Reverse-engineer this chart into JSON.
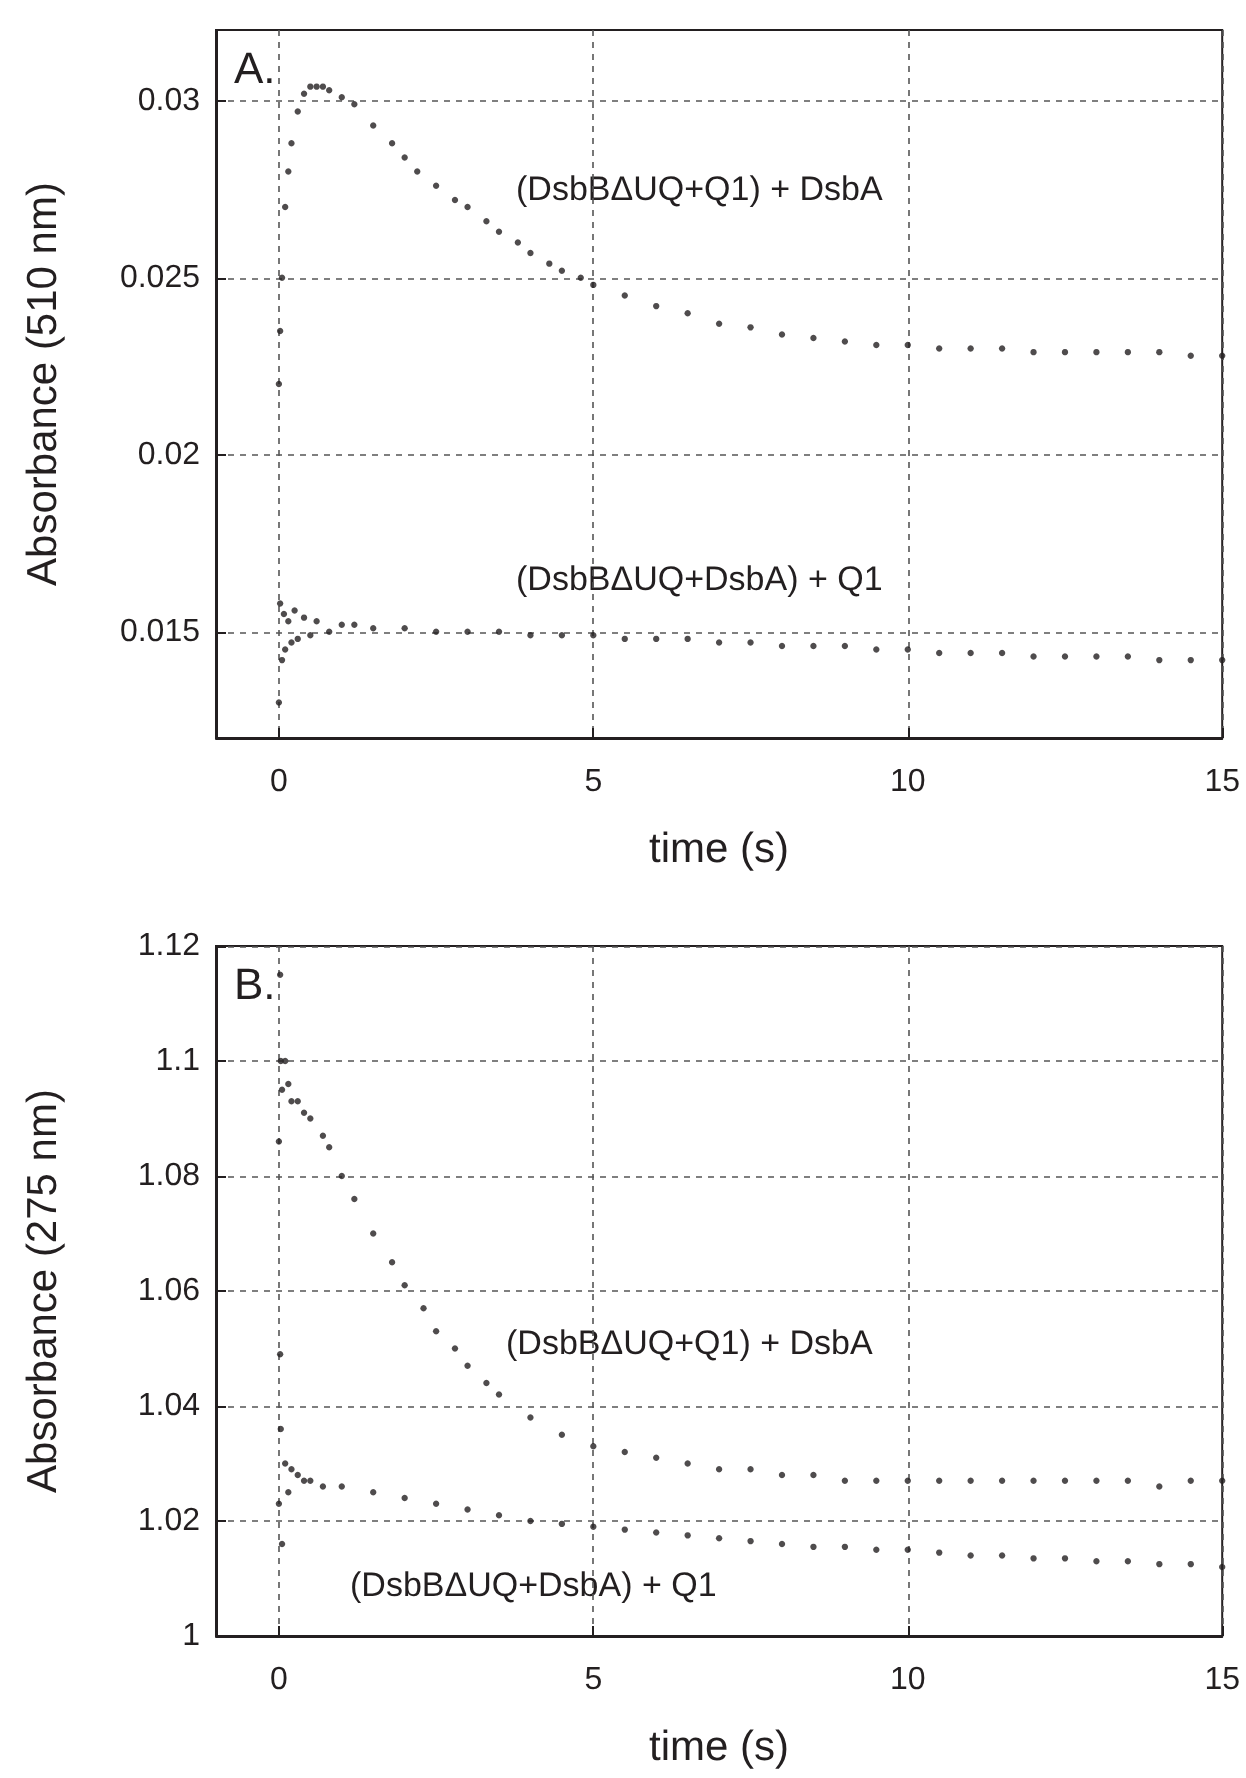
{
  "chart_data": [
    {
      "type": "scatter",
      "title": "A.",
      "xlabel": "time (s)",
      "ylabel": "Absorbance (510 nm)",
      "xlim": [
        -1,
        15
      ],
      "xticks": [
        0,
        5,
        10,
        15
      ],
      "ylim": [
        0.012,
        0.032
      ],
      "yticks": [
        0.015,
        0.02,
        0.025,
        0.03
      ],
      "grid": true,
      "marker": "circle",
      "series": [
        {
          "name": "(DsbBΔUQ+Q1) + DsbA",
          "color": "#231f20",
          "x": [
            0,
            0.02,
            0.05,
            0.1,
            0.15,
            0.2,
            0.3,
            0.4,
            0.5,
            0.6,
            0.7,
            0.8,
            1.0,
            1.2,
            1.5,
            1.8,
            2.0,
            2.2,
            2.5,
            2.8,
            3,
            3.3,
            3.5,
            3.8,
            4,
            4.3,
            4.5,
            4.8,
            5,
            5.5,
            6,
            6.5,
            7,
            7.5,
            8,
            8.5,
            9,
            9.5,
            10,
            10.5,
            11,
            11.5,
            12,
            12.5,
            13,
            13.5,
            14,
            14.5,
            15
          ],
          "values": [
            0.022,
            0.0235,
            0.025,
            0.027,
            0.028,
            0.0288,
            0.0297,
            0.0302,
            0.0304,
            0.0304,
            0.0304,
            0.0303,
            0.0301,
            0.0299,
            0.0293,
            0.0288,
            0.0284,
            0.028,
            0.0276,
            0.0272,
            0.027,
            0.0266,
            0.0263,
            0.026,
            0.0257,
            0.0254,
            0.0252,
            0.025,
            0.0248,
            0.0245,
            0.0242,
            0.024,
            0.0237,
            0.0236,
            0.0234,
            0.0233,
            0.0232,
            0.0231,
            0.0231,
            0.023,
            0.023,
            0.023,
            0.0229,
            0.0229,
            0.0229,
            0.0229,
            0.0229,
            0.0228,
            0.0228
          ]
        },
        {
          "name": "(DsbBΔUQ+DsbA) + Q1",
          "color": "#231f20",
          "x": [
            0,
            0.02,
            0.05,
            0.08,
            0.1,
            0.15,
            0.2,
            0.25,
            0.3,
            0.4,
            0.5,
            0.6,
            0.8,
            1,
            1.2,
            1.5,
            2,
            2.5,
            3,
            3.5,
            4,
            4.5,
            5,
            5.5,
            6,
            6.5,
            7,
            7.5,
            8,
            8.5,
            9,
            9.5,
            10,
            10.5,
            11,
            11.5,
            12,
            12.5,
            13,
            13.5,
            14,
            14.5,
            15
          ],
          "values": [
            0.013,
            0.0158,
            0.0142,
            0.0155,
            0.0145,
            0.0153,
            0.0147,
            0.0156,
            0.0148,
            0.0154,
            0.0149,
            0.0153,
            0.015,
            0.0152,
            0.0152,
            0.0151,
            0.0151,
            0.015,
            0.015,
            0.015,
            0.0149,
            0.0149,
            0.0149,
            0.0148,
            0.0148,
            0.0148,
            0.0147,
            0.0147,
            0.0146,
            0.0146,
            0.0146,
            0.0145,
            0.0145,
            0.0144,
            0.0144,
            0.0144,
            0.0143,
            0.0143,
            0.0143,
            0.0143,
            0.0142,
            0.0142,
            0.0142
          ]
        }
      ]
    },
    {
      "type": "scatter",
      "title": "B.",
      "xlabel": "time (s)",
      "ylabel": "Absorbance (275 nm)",
      "xlim": [
        -1,
        15
      ],
      "xticks": [
        0,
        5,
        10,
        15
      ],
      "ylim": [
        1,
        1.12
      ],
      "yticks": [
        1,
        1.02,
        1.04,
        1.06,
        1.08,
        1.1,
        1.12
      ],
      "grid": true,
      "marker": "circle",
      "series": [
        {
          "name": "(DsbBΔUQ+Q1) + DsbA",
          "color": "#231f20",
          "x": [
            0,
            0.02,
            0.03,
            0.05,
            0.1,
            0.15,
            0.2,
            0.3,
            0.4,
            0.5,
            0.7,
            0.8,
            1,
            1.2,
            1.5,
            1.8,
            2,
            2.3,
            2.5,
            2.8,
            3,
            3.3,
            3.5,
            4,
            4.5,
            5,
            5.5,
            6,
            6.5,
            7,
            7.5,
            8,
            8.5,
            9,
            9.5,
            10,
            10.5,
            11,
            11.5,
            12,
            12.5,
            13,
            13.5,
            14,
            14.5,
            15
          ],
          "values": [
            1.086,
            1.115,
            1.1,
            1.095,
            1.1,
            1.096,
            1.093,
            1.093,
            1.091,
            1.09,
            1.087,
            1.085,
            1.08,
            1.076,
            1.07,
            1.065,
            1.061,
            1.057,
            1.053,
            1.05,
            1.047,
            1.044,
            1.042,
            1.038,
            1.035,
            1.033,
            1.032,
            1.031,
            1.03,
            1.029,
            1.029,
            1.028,
            1.028,
            1.027,
            1.027,
            1.027,
            1.027,
            1.027,
            1.027,
            1.027,
            1.027,
            1.027,
            1.027,
            1.026,
            1.027,
            1.027
          ]
        },
        {
          "name": "(DsbBΔUQ+DsbA) + Q1",
          "color": "#231f20",
          "x": [
            0,
            0.02,
            0.03,
            0.05,
            0.1,
            0.15,
            0.2,
            0.3,
            0.4,
            0.5,
            0.7,
            1,
            1.5,
            2,
            2.5,
            3,
            3.5,
            4,
            4.5,
            5,
            5.5,
            6,
            6.5,
            7,
            7.5,
            8,
            8.5,
            9,
            9.5,
            10,
            10.5,
            11,
            11.5,
            12,
            12.5,
            13,
            13.5,
            14,
            14.5,
            15
          ],
          "values": [
            1.023,
            1.049,
            1.036,
            1.016,
            1.03,
            1.025,
            1.029,
            1.028,
            1.027,
            1.027,
            1.026,
            1.026,
            1.025,
            1.024,
            1.023,
            1.022,
            1.021,
            1.02,
            1.0195,
            1.019,
            1.0185,
            1.018,
            1.0175,
            1.017,
            1.0165,
            1.016,
            1.0155,
            1.0155,
            1.015,
            1.015,
            1.0145,
            1.014,
            1.014,
            1.0135,
            1.0135,
            1.013,
            1.013,
            1.0125,
            1.0125,
            1.012
          ]
        }
      ]
    }
  ]
}
